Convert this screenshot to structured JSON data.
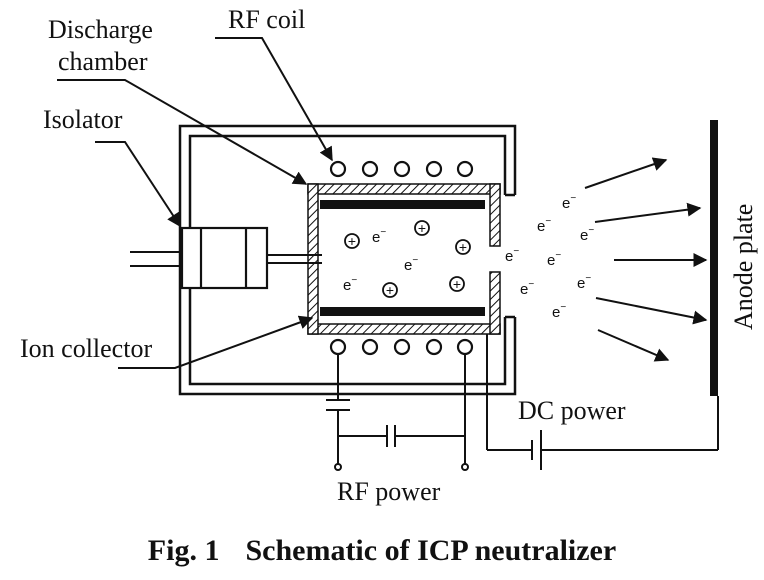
{
  "labels": {
    "rf_coil": "RF coil",
    "discharge_line1": "Discharge",
    "discharge_line2": "chamber",
    "isolator": "Isolator",
    "ion_collector": "Ion collector",
    "dc_power": "DC power",
    "rf_power": "RF power",
    "anode_plate": "Anode plate"
  },
  "symbols": {
    "electron": "e",
    "electron_sup": "−",
    "ion": "+"
  },
  "caption": {
    "number": "Fig. 1",
    "title": "Schematic of ICP neutralizer"
  }
}
